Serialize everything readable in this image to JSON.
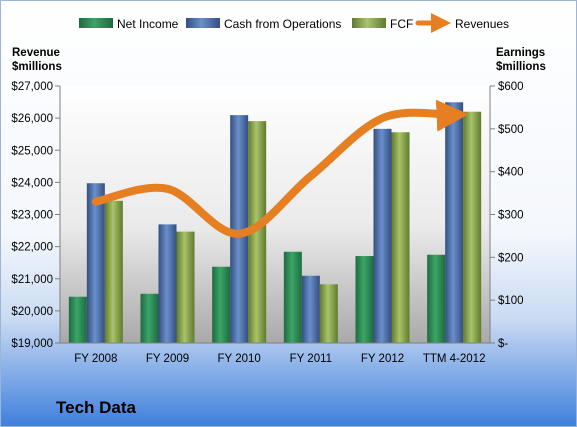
{
  "chart_data": {
    "type": "bar",
    "categories": [
      "FY 2008",
      "FY 2009",
      "FY 2010",
      "FY 2011",
      "FY 2012",
      "TTM 4-2012"
    ],
    "series": [
      {
        "name": "Net Income",
        "axis": "right",
        "values": [
          108,
          115,
          178,
          213,
          203,
          206
        ],
        "color": "#2e8b57"
      },
      {
        "name": "Cash from Operations",
        "axis": "right",
        "values": [
          373,
          277,
          532,
          157,
          500,
          562
        ],
        "color": "#4f73ad"
      },
      {
        "name": "FCF",
        "axis": "right",
        "values": [
          332,
          260,
          518,
          137,
          492,
          540
        ],
        "color": "#8aaa4e"
      }
    ],
    "line_series": {
      "name": "Revenues",
      "axis": "left",
      "values": [
        23400,
        23800,
        22400,
        24200,
        26000,
        26100
      ],
      "color": "#e67e22"
    },
    "left_axis": {
      "title_lines": [
        "Revenue",
        "$millions"
      ],
      "ylim": [
        19000,
        27000
      ],
      "ticks": [
        19000,
        20000,
        21000,
        22000,
        23000,
        24000,
        25000,
        26000,
        27000
      ],
      "tick_labels": [
        "$19,000",
        "$20,000",
        "$21,000",
        "$22,000",
        "$23,000",
        "$24,000",
        "$25,000",
        "$26,000",
        "$27,000"
      ]
    },
    "right_axis": {
      "title_lines": [
        "Earnings",
        "$millions"
      ],
      "ylim": [
        0,
        600
      ],
      "ticks": [
        0,
        100,
        200,
        300,
        400,
        500,
        600
      ],
      "tick_labels": [
        "$-",
        "$100",
        "$200",
        "$300",
        "$400",
        "$500",
        "$600"
      ]
    },
    "legend_position": "top",
    "company": "Tech Data",
    "grid": false
  }
}
